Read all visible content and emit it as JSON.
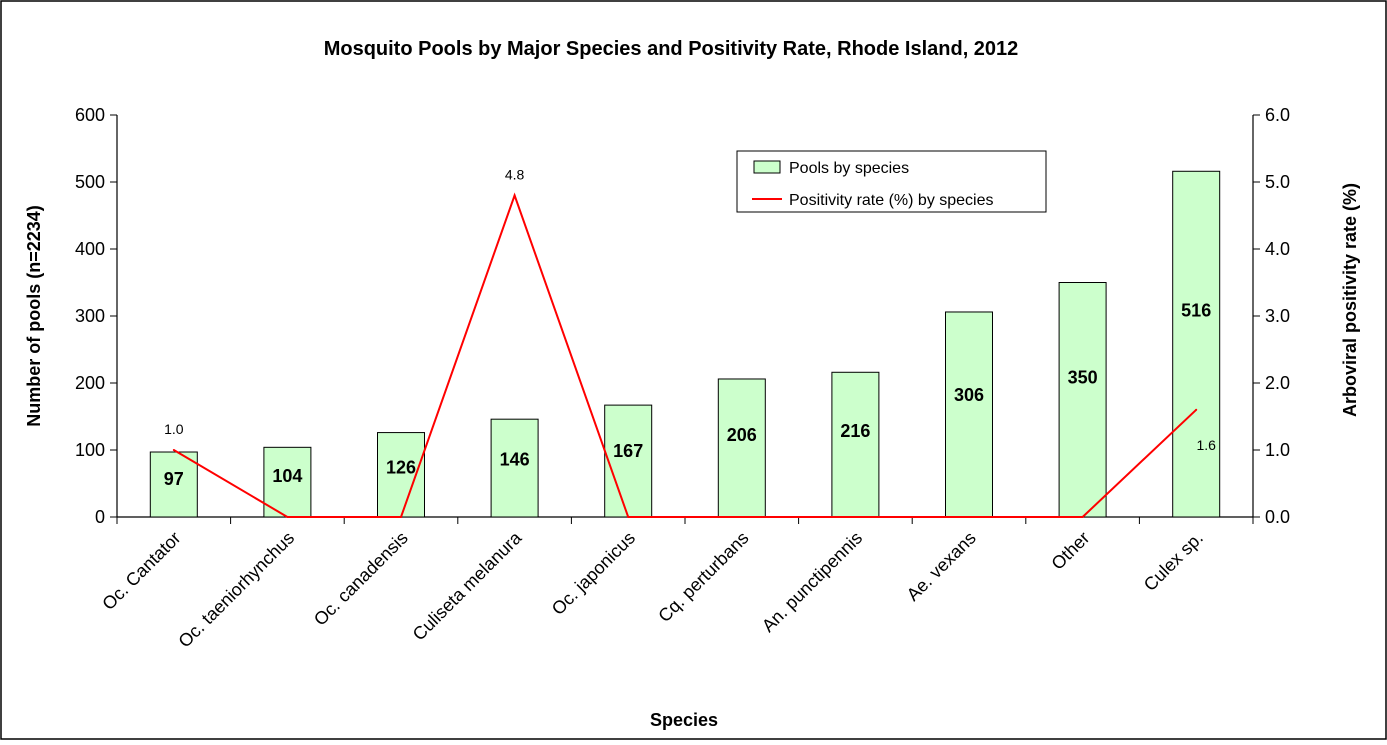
{
  "chart_data": {
    "type": "bar",
    "title": "Mosquito Pools by Major Species and Positivity Rate, Rhode Island, 2012",
    "xlabel": "Species",
    "ylabel": "Number of pools (n=2234)",
    "y2label": "Arboviral positivity rate (%)",
    "categories": [
      "Oc. Cantator",
      "Oc. taeniorhynchus",
      "Oc. canadensis",
      "Culiseta melanura",
      "Oc. japonicus",
      "Cq. perturbans",
      "An. punctipennis",
      "Ae. vexans",
      "Other",
      "Culex sp."
    ],
    "ylim": [
      0,
      600
    ],
    "y_ticks": [
      "0",
      "100",
      "200",
      "300",
      "400",
      "500",
      "600"
    ],
    "y2lim": [
      0,
      6
    ],
    "y2_ticks": [
      "0.0",
      "1.0",
      "2.0",
      "3.0",
      "4.0",
      "5.0",
      "6.0"
    ],
    "series": [
      {
        "name": "Pools by species",
        "type": "bar",
        "color": "#ccffcc",
        "values": [
          97,
          104,
          126,
          146,
          167,
          206,
          216,
          306,
          350,
          516
        ],
        "labels": [
          "97",
          "104",
          "126",
          "146",
          "167",
          "206",
          "216",
          "306",
          "350",
          "516"
        ]
      },
      {
        "name": "Positivity rate (%) by species",
        "type": "line",
        "axis": "secondary",
        "color": "#ff0000",
        "values": [
          1.0,
          0,
          0,
          4.8,
          0,
          0,
          0,
          0,
          0,
          1.6
        ],
        "point_labels": [
          "1.0",
          "",
          "",
          "4.8",
          "",
          "",
          "",
          "",
          "",
          "1.6"
        ]
      }
    ],
    "legend": {
      "position": "top-right",
      "entries": [
        "Pools by species",
        "Positivity rate (%) by species"
      ]
    },
    "grid": false
  }
}
